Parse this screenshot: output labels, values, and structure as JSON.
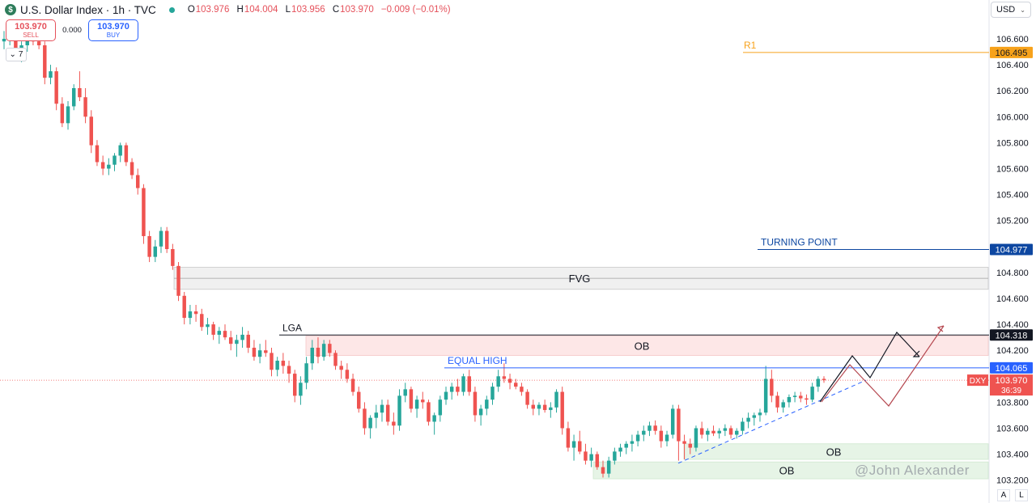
{
  "header": {
    "title": "U.S. Dollar Index · 1h · TVC",
    "open_label": "O",
    "open": "103.976",
    "high_label": "H",
    "high": "104.004",
    "low_label": "L",
    "low": "103.956",
    "close_label": "C",
    "close": "103.970",
    "change": "−0.009 (−0.01%)",
    "status_color": "#26a69a"
  },
  "trade": {
    "sell_price": "103.970",
    "sell_label": "SELL",
    "spread": "0.000",
    "buy_price": "103.970",
    "buy_label": "BUY"
  },
  "indicator_toggle": "7",
  "currency": "USD",
  "corner_buttons": [
    "A",
    "L"
  ],
  "watermark": "@John Alexander",
  "chart_data": {
    "type": "candlestick",
    "timeframe": "1h",
    "ylim": [
      103.15,
      106.7
    ],
    "yticks": [
      "106.600",
      "106.400",
      "106.200",
      "106.000",
      "105.800",
      "105.600",
      "105.400",
      "105.200",
      "104.800",
      "104.600",
      "104.400",
      "104.200",
      "103.800",
      "103.600",
      "103.400",
      "103.200"
    ],
    "colors": {
      "up": "#26a69a",
      "down": "#ef5350"
    },
    "ohlc": [
      [
        106.58,
        106.66,
        106.52,
        106.6
      ],
      [
        106.6,
        106.66,
        106.55,
        106.62
      ],
      [
        106.62,
        106.65,
        106.48,
        106.52
      ],
      [
        106.52,
        106.58,
        106.42,
        106.55
      ],
      [
        106.55,
        106.63,
        106.5,
        106.61
      ],
      [
        106.61,
        106.65,
        106.55,
        106.58
      ],
      [
        106.58,
        106.62,
        106.52,
        106.55
      ],
      [
        106.55,
        106.58,
        106.25,
        106.3
      ],
      [
        106.3,
        106.4,
        106.25,
        106.35
      ],
      [
        106.35,
        106.38,
        106.05,
        106.1
      ],
      [
        106.1,
        106.15,
        105.92,
        105.95
      ],
      [
        105.95,
        106.12,
        105.9,
        106.08
      ],
      [
        106.08,
        106.25,
        106.05,
        106.22
      ],
      [
        106.22,
        106.35,
        106.12,
        106.15
      ],
      [
        106.15,
        106.22,
        105.95,
        106.0
      ],
      [
        106.0,
        106.05,
        105.72,
        105.78
      ],
      [
        105.78,
        105.82,
        105.62,
        105.65
      ],
      [
        105.65,
        105.7,
        105.55,
        105.6
      ],
      [
        105.6,
        105.68,
        105.55,
        105.63
      ],
      [
        105.63,
        105.72,
        105.58,
        105.7
      ],
      [
        105.7,
        105.8,
        105.65,
        105.78
      ],
      [
        105.78,
        105.8,
        105.62,
        105.65
      ],
      [
        105.65,
        105.68,
        105.52,
        105.55
      ],
      [
        105.55,
        105.6,
        105.4,
        105.45
      ],
      [
        105.45,
        105.48,
        105.02,
        105.08
      ],
      [
        105.08,
        105.12,
        104.88,
        104.92
      ],
      [
        104.92,
        105.05,
        104.88,
        105.0
      ],
      [
        105.0,
        105.15,
        104.95,
        105.12
      ],
      [
        105.12,
        105.15,
        104.95,
        104.98
      ],
      [
        104.98,
        105.02,
        104.82,
        104.85
      ],
      [
        104.85,
        104.88,
        104.58,
        104.62
      ],
      [
        104.62,
        104.65,
        104.4,
        104.45
      ],
      [
        104.45,
        104.55,
        104.4,
        104.5
      ],
      [
        104.5,
        104.55,
        104.42,
        104.48
      ],
      [
        104.48,
        104.52,
        104.35,
        104.38
      ],
      [
        104.38,
        104.45,
        104.32,
        104.4
      ],
      [
        104.4,
        104.42,
        104.28,
        104.32
      ],
      [
        104.32,
        104.38,
        104.25,
        104.35
      ],
      [
        104.35,
        104.4,
        104.28,
        104.3
      ],
      [
        104.3,
        104.35,
        104.2,
        104.25
      ],
      [
        104.25,
        104.32,
        104.15,
        104.28
      ],
      [
        104.28,
        104.38,
        104.22,
        104.32
      ],
      [
        104.32,
        104.35,
        104.18,
        104.22
      ],
      [
        104.22,
        104.28,
        104.12,
        104.15
      ],
      [
        104.15,
        104.25,
        104.1,
        104.2
      ],
      [
        104.2,
        104.28,
        104.15,
        104.18
      ],
      [
        104.18,
        104.22,
        104.0,
        104.05
      ],
      [
        104.05,
        104.15,
        104.0,
        104.12
      ],
      [
        104.12,
        104.18,
        104.02,
        104.08
      ],
      [
        104.08,
        104.12,
        103.95,
        104.02
      ],
      [
        104.02,
        104.05,
        103.8,
        103.85
      ],
      [
        103.85,
        104.0,
        103.78,
        103.95
      ],
      [
        103.95,
        104.15,
        103.9,
        104.1
      ],
      [
        104.1,
        104.28,
        104.05,
        104.22
      ],
      [
        104.22,
        104.3,
        104.1,
        104.15
      ],
      [
        104.15,
        104.28,
        104.12,
        104.25
      ],
      [
        104.25,
        104.28,
        104.15,
        104.18
      ],
      [
        104.18,
        104.2,
        104.05,
        104.08
      ],
      [
        104.08,
        104.12,
        103.98,
        104.05
      ],
      [
        104.05,
        104.1,
        103.95,
        103.98
      ],
      [
        103.98,
        104.02,
        103.85,
        103.88
      ],
      [
        103.88,
        103.92,
        103.72,
        103.75
      ],
      [
        103.75,
        103.8,
        103.55,
        103.6
      ],
      [
        103.6,
        103.7,
        103.52,
        103.68
      ],
      [
        103.68,
        103.78,
        103.6,
        103.72
      ],
      [
        103.72,
        103.82,
        103.65,
        103.78
      ],
      [
        103.78,
        103.82,
        103.62,
        103.65
      ],
      [
        103.65,
        103.72,
        103.55,
        103.62
      ],
      [
        103.62,
        103.9,
        103.58,
        103.85
      ],
      [
        103.85,
        103.95,
        103.8,
        103.9
      ],
      [
        103.9,
        103.92,
        103.72,
        103.75
      ],
      [
        103.75,
        103.85,
        103.68,
        103.82
      ],
      [
        103.82,
        103.88,
        103.75,
        103.8
      ],
      [
        103.8,
        103.82,
        103.62,
        103.65
      ],
      [
        103.65,
        103.72,
        103.55,
        103.7
      ],
      [
        103.7,
        103.85,
        103.65,
        103.82
      ],
      [
        103.82,
        103.92,
        103.78,
        103.88
      ],
      [
        103.88,
        103.95,
        103.82,
        103.92
      ],
      [
        103.92,
        103.98,
        103.85,
        103.88
      ],
      [
        103.88,
        104.02,
        103.85,
        104.0
      ],
      [
        104.0,
        104.05,
        103.85,
        103.88
      ],
      [
        103.88,
        103.92,
        103.65,
        103.7
      ],
      [
        103.7,
        103.78,
        103.62,
        103.75
      ],
      [
        103.75,
        103.85,
        103.7,
        103.82
      ],
      [
        103.82,
        103.95,
        103.78,
        103.92
      ],
      [
        103.92,
        104.05,
        103.88,
        104.0
      ],
      [
        104.0,
        104.1,
        103.95,
        103.98
      ],
      [
        103.98,
        104.02,
        103.9,
        103.95
      ],
      [
        103.95,
        103.98,
        103.9,
        103.92
      ],
      [
        103.92,
        103.95,
        103.85,
        103.88
      ],
      [
        103.88,
        103.9,
        103.75,
        103.78
      ],
      [
        103.78,
        103.82,
        103.7,
        103.75
      ],
      [
        103.75,
        103.8,
        103.7,
        103.78
      ],
      [
        103.78,
        103.82,
        103.72,
        103.74
      ],
      [
        103.74,
        103.8,
        103.68,
        103.76
      ],
      [
        103.76,
        103.9,
        103.72,
        103.88
      ],
      [
        103.88,
        103.92,
        103.55,
        103.6
      ],
      [
        103.6,
        103.65,
        103.42,
        103.45
      ],
      [
        103.45,
        103.55,
        103.35,
        103.5
      ],
      [
        103.5,
        103.58,
        103.4,
        103.42
      ],
      [
        103.42,
        103.48,
        103.32,
        103.35
      ],
      [
        103.35,
        103.45,
        103.3,
        103.4
      ],
      [
        103.4,
        103.42,
        103.28,
        103.3
      ],
      [
        103.3,
        103.35,
        103.22,
        103.25
      ],
      [
        103.25,
        103.38,
        103.22,
        103.35
      ],
      [
        103.35,
        103.45,
        103.32,
        103.42
      ],
      [
        103.42,
        103.48,
        103.38,
        103.45
      ],
      [
        103.45,
        103.5,
        103.4,
        103.48
      ],
      [
        103.48,
        103.55,
        103.42,
        103.5
      ],
      [
        103.5,
        103.58,
        103.46,
        103.55
      ],
      [
        103.55,
        103.62,
        103.5,
        103.58
      ],
      [
        103.58,
        103.65,
        103.54,
        103.62
      ],
      [
        103.62,
        103.66,
        103.55,
        103.58
      ],
      [
        103.58,
        103.62,
        103.45,
        103.5
      ],
      [
        103.5,
        103.58,
        103.46,
        103.55
      ],
      [
        103.55,
        103.78,
        103.52,
        103.75
      ],
      [
        103.75,
        103.78,
        103.35,
        103.5
      ],
      [
        103.5,
        103.55,
        103.36,
        103.48
      ],
      [
        103.48,
        103.52,
        103.4,
        103.45
      ],
      [
        103.45,
        103.62,
        103.42,
        103.6
      ],
      [
        103.6,
        103.65,
        103.52,
        103.55
      ],
      [
        103.55,
        103.6,
        103.5,
        103.58
      ],
      [
        103.58,
        103.62,
        103.54,
        103.56
      ],
      [
        103.56,
        103.6,
        103.52,
        103.58
      ],
      [
        103.58,
        103.63,
        103.54,
        103.6
      ],
      [
        103.6,
        103.62,
        103.52,
        103.55
      ],
      [
        103.55,
        103.6,
        103.52,
        103.58
      ],
      [
        103.58,
        103.68,
        103.55,
        103.65
      ],
      [
        103.65,
        103.72,
        103.6,
        103.68
      ],
      [
        103.68,
        103.72,
        103.62,
        103.7
      ],
      [
        103.7,
        103.75,
        103.65,
        103.72
      ],
      [
        103.72,
        104.08,
        103.7,
        103.98
      ],
      [
        103.98,
        104.05,
        103.8,
        103.85
      ],
      [
        103.85,
        103.88,
        103.72,
        103.76
      ],
      [
        103.76,
        103.82,
        103.72,
        103.8
      ],
      [
        103.8,
        103.86,
        103.76,
        103.84
      ],
      [
        103.84,
        103.88,
        103.8,
        103.85
      ],
      [
        103.85,
        103.88,
        103.8,
        103.83
      ],
      [
        103.83,
        103.86,
        103.78,
        103.82
      ],
      [
        103.82,
        103.95,
        103.8,
        103.92
      ],
      [
        103.92,
        104.0,
        103.88,
        103.98
      ],
      [
        103.98,
        104.0,
        103.95,
        103.97
      ]
    ],
    "levels": [
      {
        "label": "R1",
        "price": 106.495,
        "badge": "106.495",
        "color": "#f7a21b"
      },
      {
        "label": "TURNING POINT",
        "price": 104.977,
        "badge": "104.977",
        "color": "#0d47a1"
      },
      {
        "label": "LGA",
        "price": 104.318,
        "badge": "104.318",
        "color": "#131722"
      },
      {
        "label": "EQUAL HIGH",
        "price": 104.065,
        "badge": "104.065",
        "color": "#2962ff"
      }
    ],
    "zones": [
      {
        "label": "FVG",
        "top": 104.84,
        "bottom": 104.67
      },
      {
        "label": "OB",
        "top": 104.31,
        "bottom": 104.16
      },
      {
        "label": "OB",
        "top": 103.48,
        "bottom": 103.36
      },
      {
        "label": "OB",
        "top": 103.34,
        "bottom": 103.21
      }
    ],
    "current": {
      "symbol": "DXY",
      "price": "103.970",
      "countdown": "36:39",
      "value": 103.97
    }
  }
}
